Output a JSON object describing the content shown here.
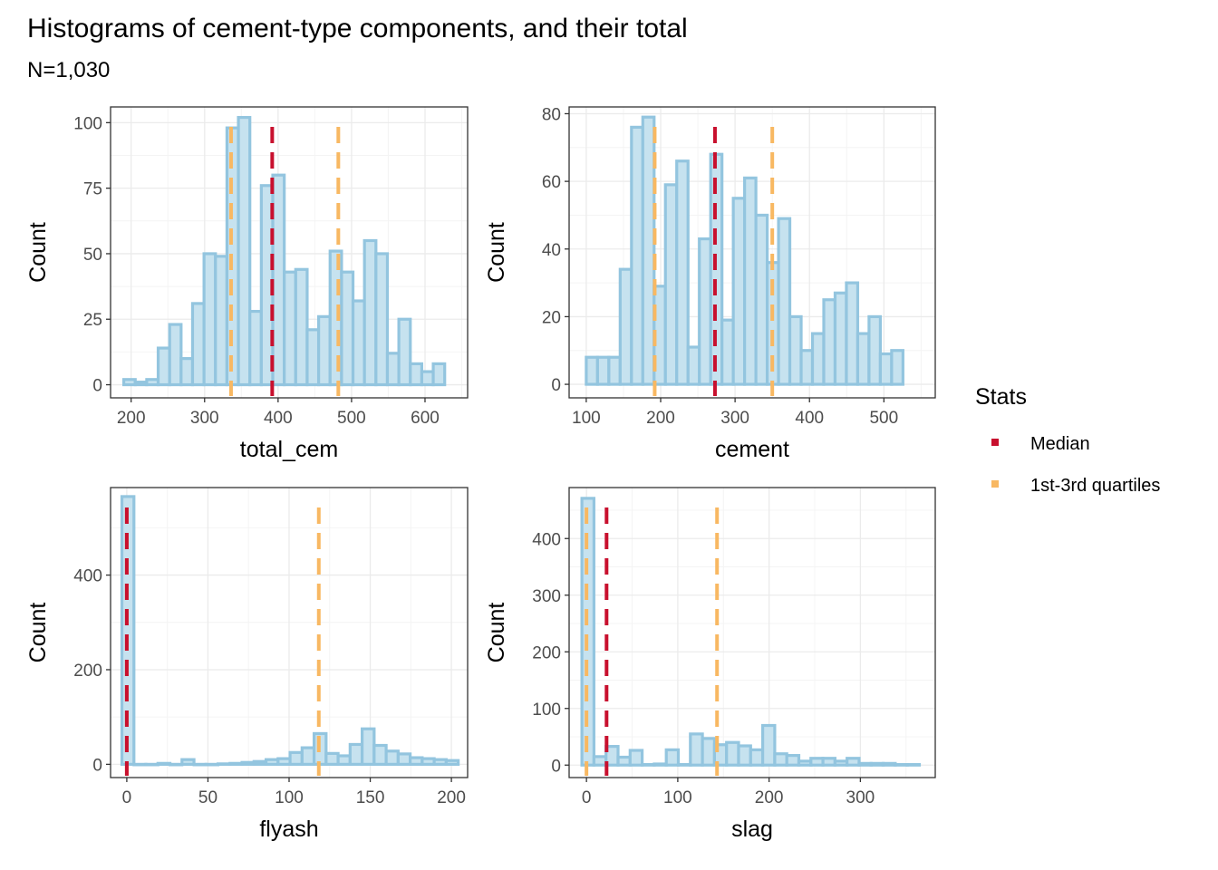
{
  "title": "Histograms of cement-type components, and their total",
  "subtitle": "N=1,030",
  "legend": {
    "title": "Stats",
    "items": [
      {
        "label": "Median",
        "color": "#c8102e"
      },
      {
        "label": "1st-3rd quartiles",
        "color": "#f8b862"
      }
    ]
  },
  "colors": {
    "bar_fill": "#c6e2ef",
    "bar_outline": "#93c5df",
    "grid": "#ebebeb",
    "panel_border": "#333333"
  },
  "chart_data": [
    {
      "type": "bar",
      "xlabel": "total_cem",
      "ylabel": "Count",
      "xlim": [
        172,
        658
      ],
      "ylim": [
        -5,
        106
      ],
      "xticks": [
        200,
        300,
        400,
        500,
        600
      ],
      "yticks": [
        0,
        25,
        50,
        75,
        100
      ],
      "bin_start": 190,
      "bin_width": 15.6,
      "values": [
        2,
        1,
        2,
        14,
        23,
        10,
        31,
        50,
        49,
        98,
        102,
        28,
        76,
        80,
        43,
        44,
        21,
        26,
        51,
        43,
        32,
        55,
        50,
        12,
        25,
        8,
        5,
        8
      ],
      "median": 392,
      "quartiles": [
        336,
        482
      ]
    },
    {
      "type": "bar",
      "xlabel": "cement",
      "ylabel": "Count",
      "xlim": [
        77,
        569
      ],
      "ylim": [
        -4,
        82
      ],
      "xticks": [
        100,
        200,
        300,
        400,
        500
      ],
      "yticks": [
        0,
        20,
        40,
        60,
        80
      ],
      "bin_start": 100,
      "bin_width": 15.2,
      "values": [
        8,
        8,
        8,
        34,
        76,
        79,
        29,
        59,
        66,
        11,
        43,
        68,
        19,
        55,
        61,
        50,
        36,
        49,
        20,
        10,
        15,
        25,
        27,
        30,
        15,
        20,
        9,
        10
      ],
      "median": 273,
      "quartiles": [
        192,
        350
      ]
    },
    {
      "type": "bar",
      "xlabel": "flyash",
      "ylabel": "Count",
      "xlim": [
        -10,
        210
      ],
      "ylim": [
        -28,
        585
      ],
      "xticks": [
        0,
        50,
        100,
        150,
        200
      ],
      "yticks": [
        0,
        200,
        400
      ],
      "bin_start": -3,
      "bin_width": 7.4,
      "values": [
        566,
        0,
        0,
        2,
        0,
        10,
        0,
        0,
        1,
        2,
        4,
        6,
        10,
        12,
        25,
        35,
        65,
        23,
        18,
        42,
        75,
        40,
        28,
        22,
        14,
        12,
        10,
        8
      ],
      "median": 0,
      "quartiles": [
        0,
        118.3
      ]
    },
    {
      "type": "bar",
      "xlabel": "slag",
      "ylabel": "Count",
      "xlim": [
        -19,
        382
      ],
      "ylim": [
        -22,
        490
      ],
      "xticks": [
        0,
        100,
        200,
        300
      ],
      "yticks": [
        0,
        100,
        200,
        300,
        400
      ],
      "bin_start": -5,
      "bin_width": 13.2,
      "values": [
        471,
        15,
        33,
        14,
        26,
        1,
        2,
        27,
        1,
        55,
        47,
        36,
        40,
        34,
        27,
        70,
        20,
        17,
        7,
        12,
        12,
        7,
        12,
        3,
        3,
        3,
        1,
        1
      ],
      "median": 22,
      "quartiles": [
        0,
        143
      ]
    }
  ]
}
